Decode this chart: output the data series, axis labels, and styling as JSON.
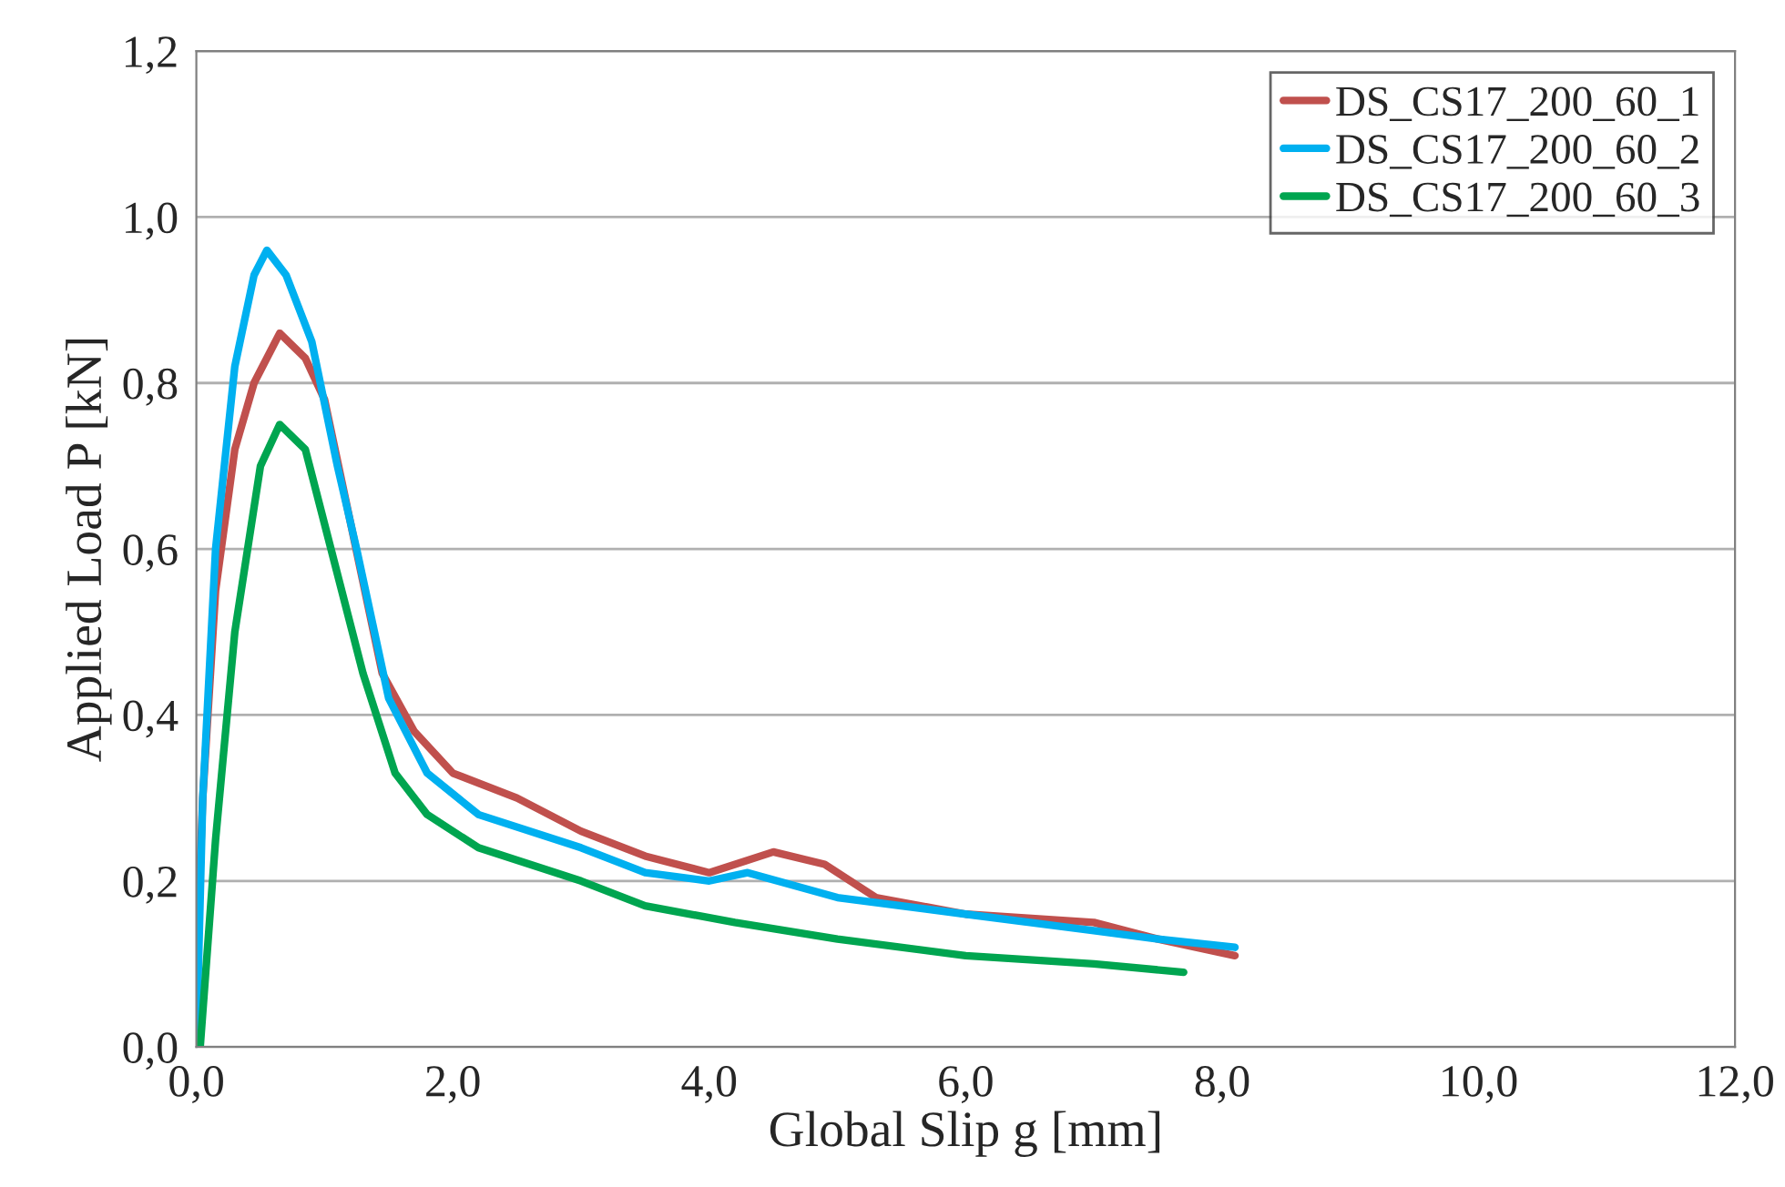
{
  "chart_data": {
    "type": "line",
    "xlabel": "Global Slip g [mm]",
    "ylabel": "Applied Load P [kN]",
    "xlim": [
      0,
      12
    ],
    "ylim": [
      0,
      1.2
    ],
    "xticks": [
      {
        "value": 0,
        "label": "0,0"
      },
      {
        "value": 2,
        "label": "2,0"
      },
      {
        "value": 4,
        "label": "4,0"
      },
      {
        "value": 6,
        "label": "6,0"
      },
      {
        "value": 8,
        "label": "8,0"
      },
      {
        "value": 10,
        "label": "10,0"
      },
      {
        "value": 12,
        "label": "12,0"
      }
    ],
    "yticks": [
      {
        "value": 0,
        "label": "0,0"
      },
      {
        "value": 0.2,
        "label": "0,2"
      },
      {
        "value": 0.4,
        "label": "0,4"
      },
      {
        "value": 0.6,
        "label": "0,6"
      },
      {
        "value": 0.8,
        "label": "0,8"
      },
      {
        "value": 1.0,
        "label": "1,0"
      },
      {
        "value": 1.2,
        "label": "1,2"
      }
    ],
    "grid": "y",
    "legend": "top right",
    "marker": "none",
    "line_style": "solid",
    "series": [
      {
        "name": "DS_CS17_200_60_1",
        "color": "#c0504d",
        "x": [
          0,
          0.05,
          0.15,
          0.3,
          0.45,
          0.65,
          0.85,
          1.0,
          1.45,
          1.7,
          2.0,
          2.5,
          3.0,
          3.5,
          4.0,
          4.5,
          4.9,
          5.3,
          6.0,
          7.0,
          7.5,
          8.1
        ],
        "values": [
          0.1,
          0.3,
          0.55,
          0.72,
          0.8,
          0.86,
          0.83,
          0.78,
          0.45,
          0.38,
          0.33,
          0.3,
          0.26,
          0.23,
          0.21,
          0.235,
          0.22,
          0.18,
          0.16,
          0.15,
          0.13,
          0.11
        ]
      },
      {
        "name": "DS_CS17_200_60_2",
        "color": "#00b0f0",
        "x": [
          0,
          0.05,
          0.15,
          0.3,
          0.45,
          0.55,
          0.7,
          0.9,
          1.1,
          1.25,
          1.5,
          1.8,
          2.2,
          3.0,
          3.5,
          4.0,
          4.3,
          5.0,
          6.0,
          7.0,
          7.5,
          8.1
        ],
        "values": [
          0,
          0.3,
          0.6,
          0.82,
          0.93,
          0.96,
          0.93,
          0.85,
          0.7,
          0.6,
          0.42,
          0.33,
          0.28,
          0.24,
          0.21,
          0.2,
          0.21,
          0.18,
          0.16,
          0.14,
          0.13,
          0.12
        ]
      },
      {
        "name": "DS_CS17_200_60_3",
        "color": "#00a550",
        "x": [
          0.03,
          0.15,
          0.3,
          0.5,
          0.65,
          0.85,
          1.05,
          1.3,
          1.55,
          1.8,
          2.2,
          3.0,
          3.5,
          4.2,
          5.0,
          6.0,
          7.0,
          7.7
        ],
        "values": [
          0,
          0.25,
          0.5,
          0.7,
          0.75,
          0.72,
          0.6,
          0.45,
          0.33,
          0.28,
          0.24,
          0.2,
          0.17,
          0.15,
          0.13,
          0.11,
          0.1,
          0.09
        ]
      }
    ]
  }
}
